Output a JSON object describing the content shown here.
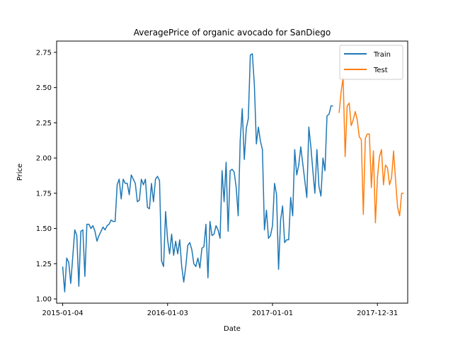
{
  "chart_data": {
    "type": "line",
    "title": "AveragePrice of organic avocado for SanDiego",
    "xlabel": "Date",
    "ylabel": "Price",
    "xlim": [
      "2014-12-14",
      "2018-04-15"
    ],
    "ylim": [
      0.97,
      2.83
    ],
    "x_ticks": [
      "2015-01-04",
      "2016-01-03",
      "2017-01-01",
      "2017-12-31"
    ],
    "y_ticks": [
      "1.00",
      "1.25",
      "1.50",
      "1.75",
      "2.00",
      "2.25",
      "2.50",
      "2.75"
    ],
    "legend_position": "top-right",
    "grid": false,
    "series": [
      {
        "name": "Train",
        "color": "#1f77b4",
        "start_date": "2015-01-04",
        "interval_days": 7,
        "values": [
          1.23,
          1.05,
          1.29,
          1.26,
          1.11,
          1.3,
          1.49,
          1.45,
          1.09,
          1.48,
          1.49,
          1.16,
          1.53,
          1.53,
          1.5,
          1.52,
          1.48,
          1.41,
          1.45,
          1.48,
          1.51,
          1.49,
          1.52,
          1.53,
          1.56,
          1.55,
          1.55,
          1.81,
          1.85,
          1.71,
          1.85,
          1.82,
          1.82,
          1.74,
          1.88,
          1.85,
          1.82,
          1.69,
          1.7,
          1.85,
          1.81,
          1.85,
          1.65,
          1.64,
          1.82,
          1.69,
          1.85,
          1.87,
          1.84,
          1.27,
          1.23,
          1.62,
          1.42,
          1.32,
          1.46,
          1.31,
          1.41,
          1.32,
          1.42,
          1.23,
          1.12,
          1.23,
          1.38,
          1.4,
          1.35,
          1.25,
          1.23,
          1.29,
          1.22,
          1.36,
          1.37,
          1.53,
          1.15,
          1.55,
          1.45,
          1.46,
          1.52,
          1.49,
          1.43,
          1.91,
          1.69,
          1.97,
          1.48,
          1.91,
          1.92,
          1.9,
          1.79,
          1.59,
          2.13,
          2.35,
          1.99,
          2.21,
          2.28,
          2.73,
          2.74,
          2.52,
          2.1,
          2.22,
          2.12,
          2.06,
          1.49,
          1.63,
          1.43,
          1.45,
          1.52,
          1.82,
          1.74,
          1.21,
          1.56,
          1.66,
          1.4,
          1.42,
          1.42,
          1.72,
          1.59,
          2.06,
          1.88,
          1.95,
          2.08,
          1.96,
          1.84,
          1.72,
          2.22,
          2.08,
          1.91,
          1.75,
          2.06,
          1.8,
          1.73,
          2.0,
          1.91,
          2.3,
          2.31,
          2.37,
          2.37
        ]
      },
      {
        "name": "Test",
        "color": "#ff7f0e",
        "start_date": "2017-08-20",
        "interval_days": 7,
        "values": [
          2.32,
          2.47,
          2.57,
          2.01,
          2.37,
          2.39,
          2.23,
          2.27,
          2.33,
          2.27,
          2.15,
          2.13,
          1.6,
          2.14,
          2.17,
          2.17,
          1.79,
          2.05,
          1.54,
          1.86,
          2.01,
          2.06,
          1.81,
          1.95,
          1.93,
          1.81,
          1.86,
          2.05,
          1.84,
          1.65,
          1.59,
          1.75,
          1.75
        ]
      }
    ]
  }
}
